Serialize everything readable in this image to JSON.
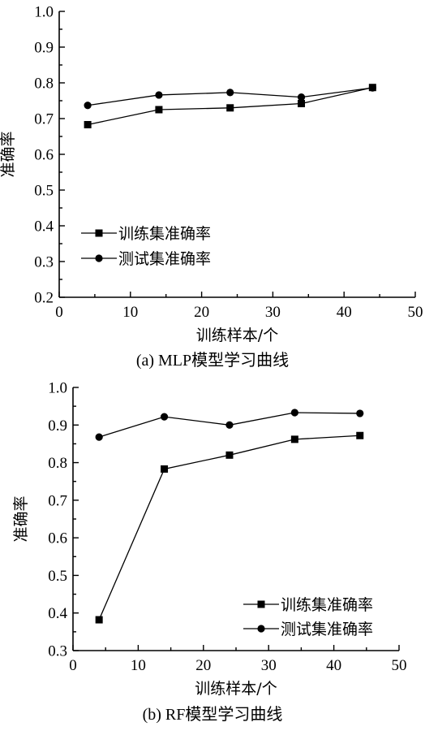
{
  "chart_data": [
    {
      "type": "line",
      "title": "(a) MLP模型学习曲线",
      "xlabel": "训练样本/个",
      "ylabel": "准确率",
      "xlim": [
        0,
        50
      ],
      "ylim": [
        0.2,
        1.0
      ],
      "xticks": [
        "0",
        "10",
        "20",
        "30",
        "40",
        "50"
      ],
      "yticks": [
        "0.2",
        "0.3",
        "0.4",
        "0.5",
        "0.6",
        "0.7",
        "0.8",
        "0.9",
        "1.0"
      ],
      "legend_position": "bottom-left",
      "series": [
        {
          "name": "训练集准确率",
          "marker": "square",
          "x": [
            4,
            14,
            24,
            34,
            44
          ],
          "y": [
            0.683,
            0.725,
            0.73,
            0.742,
            0.787
          ]
        },
        {
          "name": "测试集准确率",
          "marker": "circle",
          "x": [
            4,
            14,
            24,
            34,
            44
          ],
          "y": [
            0.737,
            0.766,
            0.773,
            0.76,
            0.786
          ]
        }
      ]
    },
    {
      "type": "line",
      "title": "(b) RF模型学习曲线",
      "xlabel": "训练样本/个",
      "ylabel": "准确率",
      "xlim": [
        0,
        50
      ],
      "ylim": [
        0.3,
        1.0
      ],
      "xticks": [
        "0",
        "10",
        "20",
        "30",
        "40",
        "50"
      ],
      "yticks": [
        "0.3",
        "0.4",
        "0.5",
        "0.6",
        "0.7",
        "0.8",
        "0.9",
        "1.0"
      ],
      "legend_position": "bottom-right",
      "series": [
        {
          "name": "训练集准确率",
          "marker": "square",
          "x": [
            4,
            14,
            24,
            34,
            44
          ],
          "y": [
            0.382,
            0.783,
            0.82,
            0.862,
            0.872
          ]
        },
        {
          "name": "测试集准确率",
          "marker": "circle",
          "x": [
            4,
            14,
            24,
            34,
            44
          ],
          "y": [
            0.868,
            0.922,
            0.9,
            0.933,
            0.931
          ]
        }
      ]
    }
  ]
}
